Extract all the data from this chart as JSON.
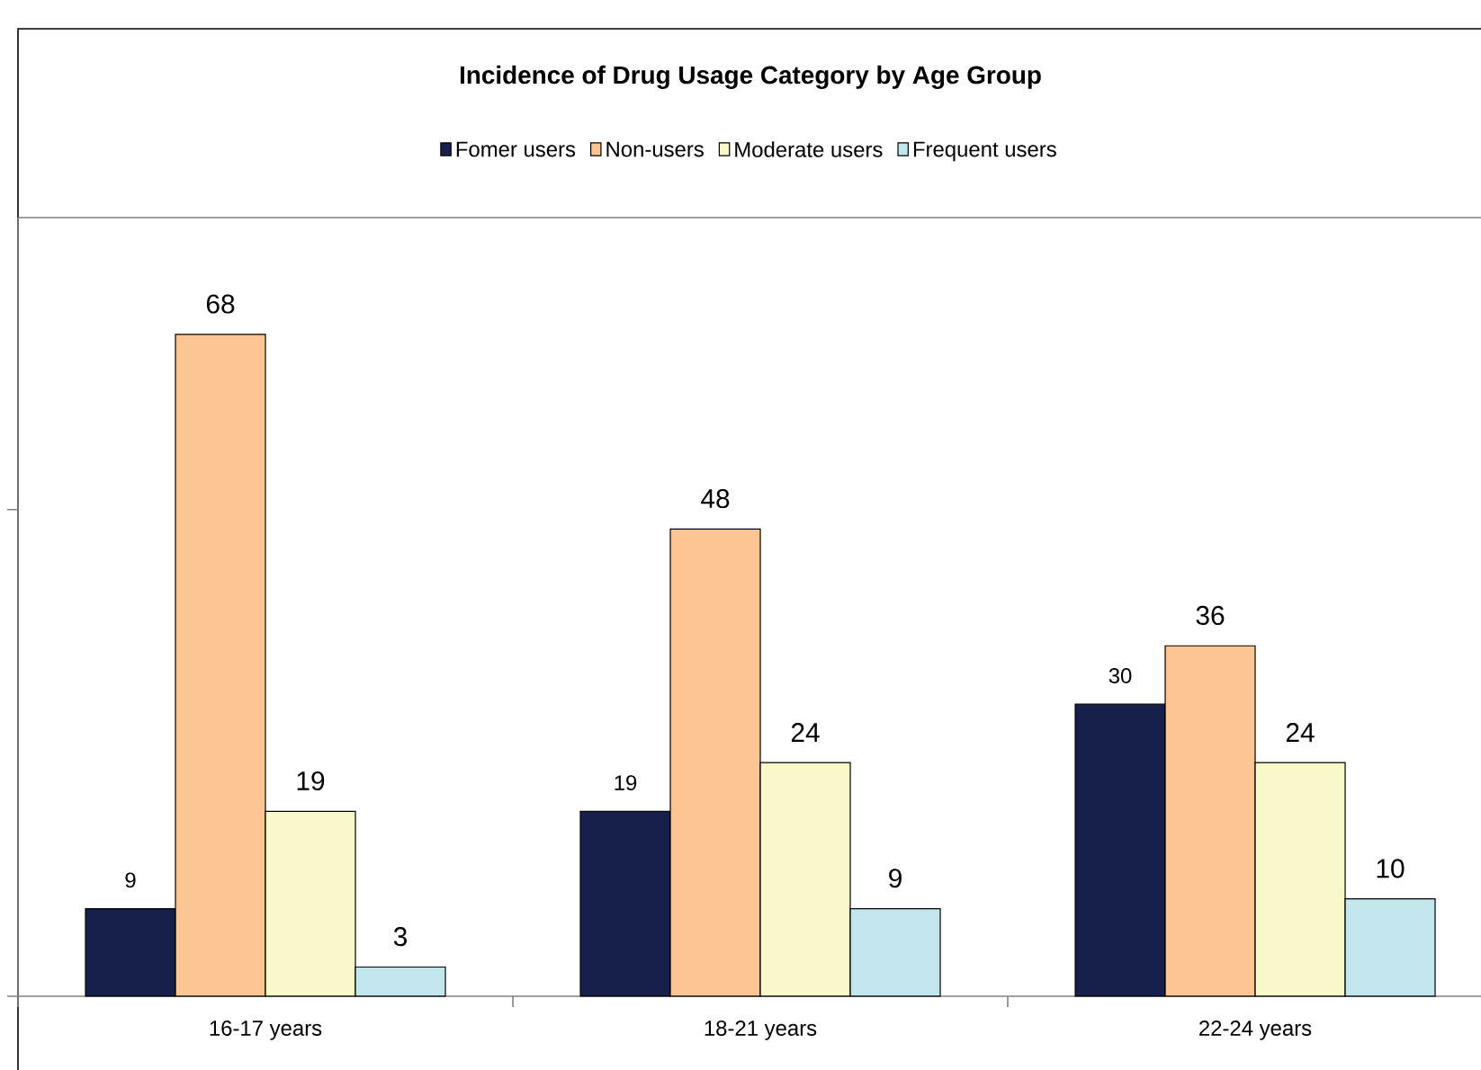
{
  "chart_data": {
    "type": "bar",
    "title": "Incidence of Drug Usage Category by Age Group",
    "categories": [
      "16-17 years",
      "18-21 years",
      "22-24 years"
    ],
    "series": [
      {
        "name": "Fomer users",
        "color": "#16204a",
        "values": [
          9,
          19,
          30
        ]
      },
      {
        "name": "Non-users",
        "color": "#fcc593",
        "values": [
          68,
          48,
          36
        ]
      },
      {
        "name": "Moderate users",
        "color": "#f8f8c8",
        "values": [
          19,
          24,
          24
        ]
      },
      {
        "name": "Frequent users",
        "color": "#c2e6ec",
        "values": [
          3,
          9,
          10
        ]
      }
    ],
    "ylim": [
      0,
      80
    ],
    "yticks": [
      {
        "value": 0,
        "label": null
      },
      {
        "value": 50,
        "label": null
      }
    ],
    "tick_labels": "x",
    "data_labels": true,
    "legend": "top",
    "grid": false
  }
}
